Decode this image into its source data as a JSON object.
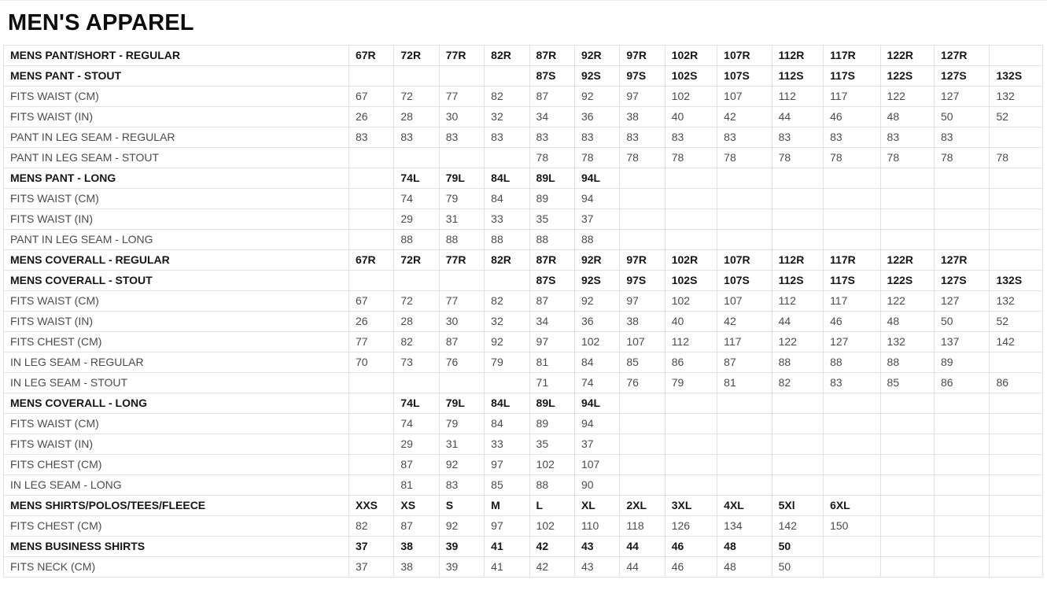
{
  "page": {
    "title": "MEN'S APPAREL"
  },
  "colors": {
    "background": "#ffffff",
    "border": "#e2e2e2",
    "header_text": "#161616",
    "data_text": "#4b4b4b",
    "title_text": "#0d0d0d"
  },
  "table": {
    "column_count": 14,
    "rows": [
      {
        "label": "MENS PANT/SHORT - REGULAR",
        "bold": true,
        "values": [
          "67R",
          "72R",
          "77R",
          "82R",
          "87R",
          "92R",
          "97R",
          "102R",
          "107R",
          "112R",
          "117R",
          "122R",
          "127R",
          ""
        ]
      },
      {
        "label": "MENS PANT - STOUT",
        "bold": true,
        "values": [
          "",
          "",
          "",
          "",
          "87S",
          "92S",
          "97S",
          "102S",
          "107S",
          "112S",
          "117S",
          "122S",
          "127S",
          "132S"
        ]
      },
      {
        "label": "FITS WAIST (CM)",
        "bold": false,
        "values": [
          "67",
          "72",
          "77",
          "82",
          "87",
          "92",
          "97",
          "102",
          "107",
          "112",
          "117",
          "122",
          "127",
          "132"
        ]
      },
      {
        "label": "FITS WAIST (IN)",
        "bold": false,
        "values": [
          "26",
          "28",
          "30",
          "32",
          "34",
          "36",
          "38",
          "40",
          "42",
          "44",
          "46",
          "48",
          "50",
          "52"
        ]
      },
      {
        "label": "PANT IN LEG SEAM - REGULAR",
        "bold": false,
        "values": [
          "83",
          "83",
          "83",
          "83",
          "83",
          "83",
          "83",
          "83",
          "83",
          "83",
          "83",
          "83",
          "83",
          ""
        ]
      },
      {
        "label": "PANT IN LEG SEAM - STOUT",
        "bold": false,
        "values": [
          "",
          "",
          "",
          "",
          "78",
          "78",
          "78",
          "78",
          "78",
          "78",
          "78",
          "78",
          "78",
          "78"
        ]
      },
      {
        "label": "MENS PANT - LONG",
        "bold": true,
        "values": [
          "",
          "74L",
          "79L",
          "84L",
          "89L",
          "94L",
          "",
          "",
          "",
          "",
          "",
          "",
          "",
          ""
        ]
      },
      {
        "label": "FITS WAIST (CM)",
        "bold": false,
        "values": [
          "",
          "74",
          "79",
          "84",
          "89",
          "94",
          "",
          "",
          "",
          "",
          "",
          "",
          "",
          ""
        ]
      },
      {
        "label": "FITS WAIST (IN)",
        "bold": false,
        "values": [
          "",
          "29",
          "31",
          "33",
          "35",
          "37",
          "",
          "",
          "",
          "",
          "",
          "",
          "",
          ""
        ]
      },
      {
        "label": "PANT IN LEG SEAM - LONG",
        "bold": false,
        "values": [
          "",
          "88",
          "88",
          "88",
          "88",
          "88",
          "",
          "",
          "",
          "",
          "",
          "",
          "",
          ""
        ]
      },
      {
        "label": "MENS COVERALL - REGULAR",
        "bold": true,
        "values": [
          "67R",
          "72R",
          "77R",
          "82R",
          "87R",
          "92R",
          "97R",
          "102R",
          "107R",
          "112R",
          "117R",
          "122R",
          "127R",
          ""
        ]
      },
      {
        "label": "MENS COVERALL - STOUT",
        "bold": true,
        "values": [
          "",
          "",
          "",
          "",
          "87S",
          "92S",
          "97S",
          "102S",
          "107S",
          "112S",
          "117S",
          "122S",
          "127S",
          "132S"
        ]
      },
      {
        "label": "FITS WAIST (CM)",
        "bold": false,
        "values": [
          "67",
          "72",
          "77",
          "82",
          "87",
          "92",
          "97",
          "102",
          "107",
          "112",
          "117",
          "122",
          "127",
          "132"
        ]
      },
      {
        "label": "FITS WAIST (IN)",
        "bold": false,
        "values": [
          "26",
          "28",
          "30",
          "32",
          "34",
          "36",
          "38",
          "40",
          "42",
          "44",
          "46",
          "48",
          "50",
          "52"
        ]
      },
      {
        "label": "FITS CHEST (CM)",
        "bold": false,
        "values": [
          "77",
          "82",
          "87",
          "92",
          "97",
          "102",
          "107",
          "112",
          "117",
          "122",
          "127",
          "132",
          "137",
          "142"
        ]
      },
      {
        "label": "IN LEG SEAM - REGULAR",
        "bold": false,
        "values": [
          "70",
          "73",
          "76",
          "79",
          "81",
          "84",
          "85",
          "86",
          "87",
          "88",
          "88",
          "88",
          "89",
          ""
        ]
      },
      {
        "label": "IN LEG SEAM - STOUT",
        "bold": false,
        "values": [
          "",
          "",
          "",
          "",
          "71",
          "74",
          "76",
          "79",
          "81",
          "82",
          "83",
          "85",
          "86",
          "86"
        ]
      },
      {
        "label": "MENS COVERALL - LONG",
        "bold": true,
        "values": [
          "",
          "74L",
          "79L",
          "84L",
          "89L",
          "94L",
          "",
          "",
          "",
          "",
          "",
          "",
          "",
          ""
        ]
      },
      {
        "label": "FITS WAIST (CM)",
        "bold": false,
        "values": [
          "",
          "74",
          "79",
          "84",
          "89",
          "94",
          "",
          "",
          "",
          "",
          "",
          "",
          "",
          ""
        ]
      },
      {
        "label": "FITS WAIST (IN)",
        "bold": false,
        "values": [
          "",
          "29",
          "31",
          "33",
          "35",
          "37",
          "",
          "",
          "",
          "",
          "",
          "",
          "",
          ""
        ]
      },
      {
        "label": "FITS CHEST (CM)",
        "bold": false,
        "values": [
          "",
          "87",
          "92",
          "97",
          "102",
          "107",
          "",
          "",
          "",
          "",
          "",
          "",
          "",
          ""
        ]
      },
      {
        "label": "IN LEG SEAM - LONG",
        "bold": false,
        "values": [
          "",
          "81",
          "83",
          "85",
          "88",
          "90",
          "",
          "",
          "",
          "",
          "",
          "",
          "",
          ""
        ]
      },
      {
        "label": "MENS SHIRTS/POLOS/TEES/FLEECE",
        "bold": true,
        "values": [
          "XXS",
          "XS",
          "S",
          "M",
          "L",
          "XL",
          "2XL",
          "3XL",
          "4XL",
          "5Xl",
          "6XL",
          "",
          "",
          ""
        ]
      },
      {
        "label": "FITS CHEST (CM)",
        "bold": false,
        "values": [
          "82",
          "87",
          "92",
          "97",
          "102",
          "110",
          "118",
          "126",
          "134",
          "142",
          "150",
          "",
          "",
          ""
        ]
      },
      {
        "label": "MENS BUSINESS SHIRTS",
        "bold": true,
        "values": [
          "37",
          "38",
          "39",
          "41",
          "42",
          "43",
          "44",
          "46",
          "48",
          "50",
          "",
          "",
          "",
          ""
        ]
      },
      {
        "label": "FITS NECK (CM)",
        "bold": false,
        "values": [
          "37",
          "38",
          "39",
          "41",
          "42",
          "43",
          "44",
          "46",
          "48",
          "50",
          "",
          "",
          "",
          ""
        ]
      }
    ]
  }
}
